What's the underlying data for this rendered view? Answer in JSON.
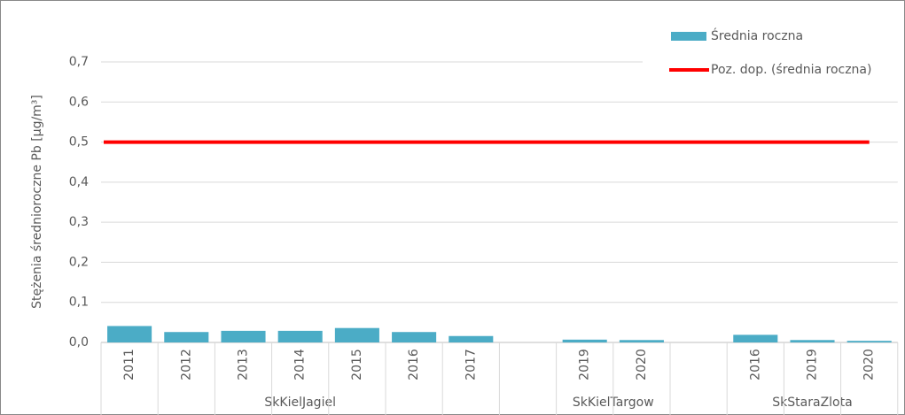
{
  "chart_data": {
    "type": "bar",
    "y_label": "Stężenia średnioroczne Pb [µg/m³]",
    "ylim": [
      0,
      0.7
    ],
    "yticks": [
      {
        "value": 0,
        "label": "0,0"
      },
      {
        "value": 0.1,
        "label": "0,1"
      },
      {
        "value": 0.2,
        "label": "0,2"
      },
      {
        "value": 0.3,
        "label": "0,3"
      },
      {
        "value": 0.4,
        "label": "0,4"
      },
      {
        "value": 0.5,
        "label": "0,5"
      },
      {
        "value": 0.6,
        "label": "0,6"
      },
      {
        "value": 0.7,
        "label": "0,7"
      }
    ],
    "grid": true,
    "legend": "top-right",
    "groups": [
      {
        "name": "SkKielJagiel",
        "categories": [
          "2011",
          "2012",
          "2013",
          "2014",
          "2015",
          "2016",
          "2017"
        ]
      },
      {
        "name": "SkKielTargow",
        "categories": [
          "2019",
          "2020"
        ]
      },
      {
        "name": "SkStaraZlota",
        "categories": [
          "2016",
          "2019",
          "2020"
        ]
      }
    ],
    "series": [
      {
        "name": "Średnia roczna",
        "color": "#4bacc6",
        "values": [
          [
            0.041,
            0.026,
            0.029,
            0.029,
            0.036,
            0.026,
            0.016
          ],
          [
            0.007,
            0.006
          ],
          [
            0.019,
            0.006,
            0.004
          ]
        ]
      },
      {
        "name": "Poz. dop. (średnia roczna)",
        "color": "#ff0000",
        "type": "line",
        "value": 0.5
      }
    ]
  }
}
